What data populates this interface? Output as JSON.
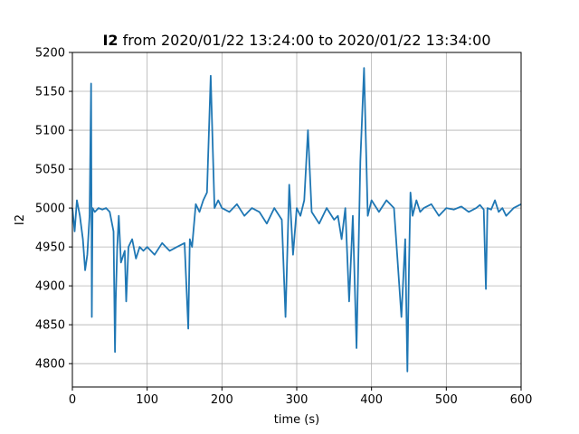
{
  "chart_data": {
    "type": "line",
    "title_signal": "I2",
    "title_rest": " from 2020/01/22 13:24:00 to 2020/01/22 13:34:00",
    "xlabel": "time (s)",
    "ylabel": "I2",
    "xlim": [
      0,
      600
    ],
    "ylim": [
      4770,
      5200
    ],
    "x_ticks": [
      0,
      100,
      200,
      300,
      400,
      500,
      600
    ],
    "y_ticks": [
      4800,
      4850,
      4900,
      4950,
      5000,
      5050,
      5100,
      5150,
      5200
    ],
    "grid": true,
    "line_color": "#1f77b4",
    "series": [
      {
        "x": [
          0,
          3,
          6,
          10,
          14,
          17,
          20,
          23,
          25,
          26,
          27,
          30,
          35,
          40,
          45,
          50,
          55,
          57,
          58,
          60,
          62,
          65,
          70,
          72,
          75,
          80,
          85,
          90,
          95,
          100,
          110,
          120,
          125,
          130,
          140,
          150,
          155,
          157,
          160,
          165,
          170,
          175,
          180,
          185,
          190,
          195,
          200,
          210,
          220,
          230,
          240,
          250,
          260,
          270,
          280,
          285,
          290,
          295,
          300,
          305,
          310,
          315,
          320,
          330,
          340,
          350,
          355,
          360,
          365,
          370,
          375,
          380,
          385,
          390,
          395,
          400,
          410,
          420,
          430,
          440,
          445,
          448,
          450,
          452,
          455,
          460,
          465,
          470,
          480,
          490,
          500,
          510,
          520,
          530,
          540,
          545,
          550,
          553,
          555,
          560,
          565,
          570,
          575,
          580,
          590,
          600
        ],
        "y": [
          5000,
          4970,
          5010,
          4990,
          4960,
          4920,
          4940,
          4990,
          5160,
          4860,
          5000,
          4995,
          5000,
          4998,
          5000,
          4995,
          4970,
          4815,
          4880,
          4950,
          4990,
          4930,
          4945,
          4880,
          4950,
          4960,
          4935,
          4950,
          4945,
          4950,
          4940,
          4955,
          4950,
          4945,
          4950,
          4955,
          4845,
          4960,
          4950,
          5005,
          4995,
          5010,
          5020,
          5170,
          5000,
          5010,
          5000,
          4995,
          5005,
          4990,
          5000,
          4995,
          4980,
          5000,
          4985,
          4860,
          5030,
          4940,
          5000,
          4990,
          5010,
          5100,
          4995,
          4980,
          5000,
          4985,
          4990,
          4960,
          5000,
          4880,
          4990,
          4820,
          5060,
          5180,
          4990,
          5010,
          4995,
          5010,
          5000,
          4860,
          4960,
          4790,
          4920,
          5020,
          4990,
          5010,
          4995,
          5000,
          5005,
          4990,
          5000,
          4998,
          5002,
          4995,
          5000,
          5004,
          4998,
          4896,
          5000,
          4998,
          5010,
          4995,
          5000,
          4990,
          5000,
          5005
        ]
      }
    ]
  }
}
